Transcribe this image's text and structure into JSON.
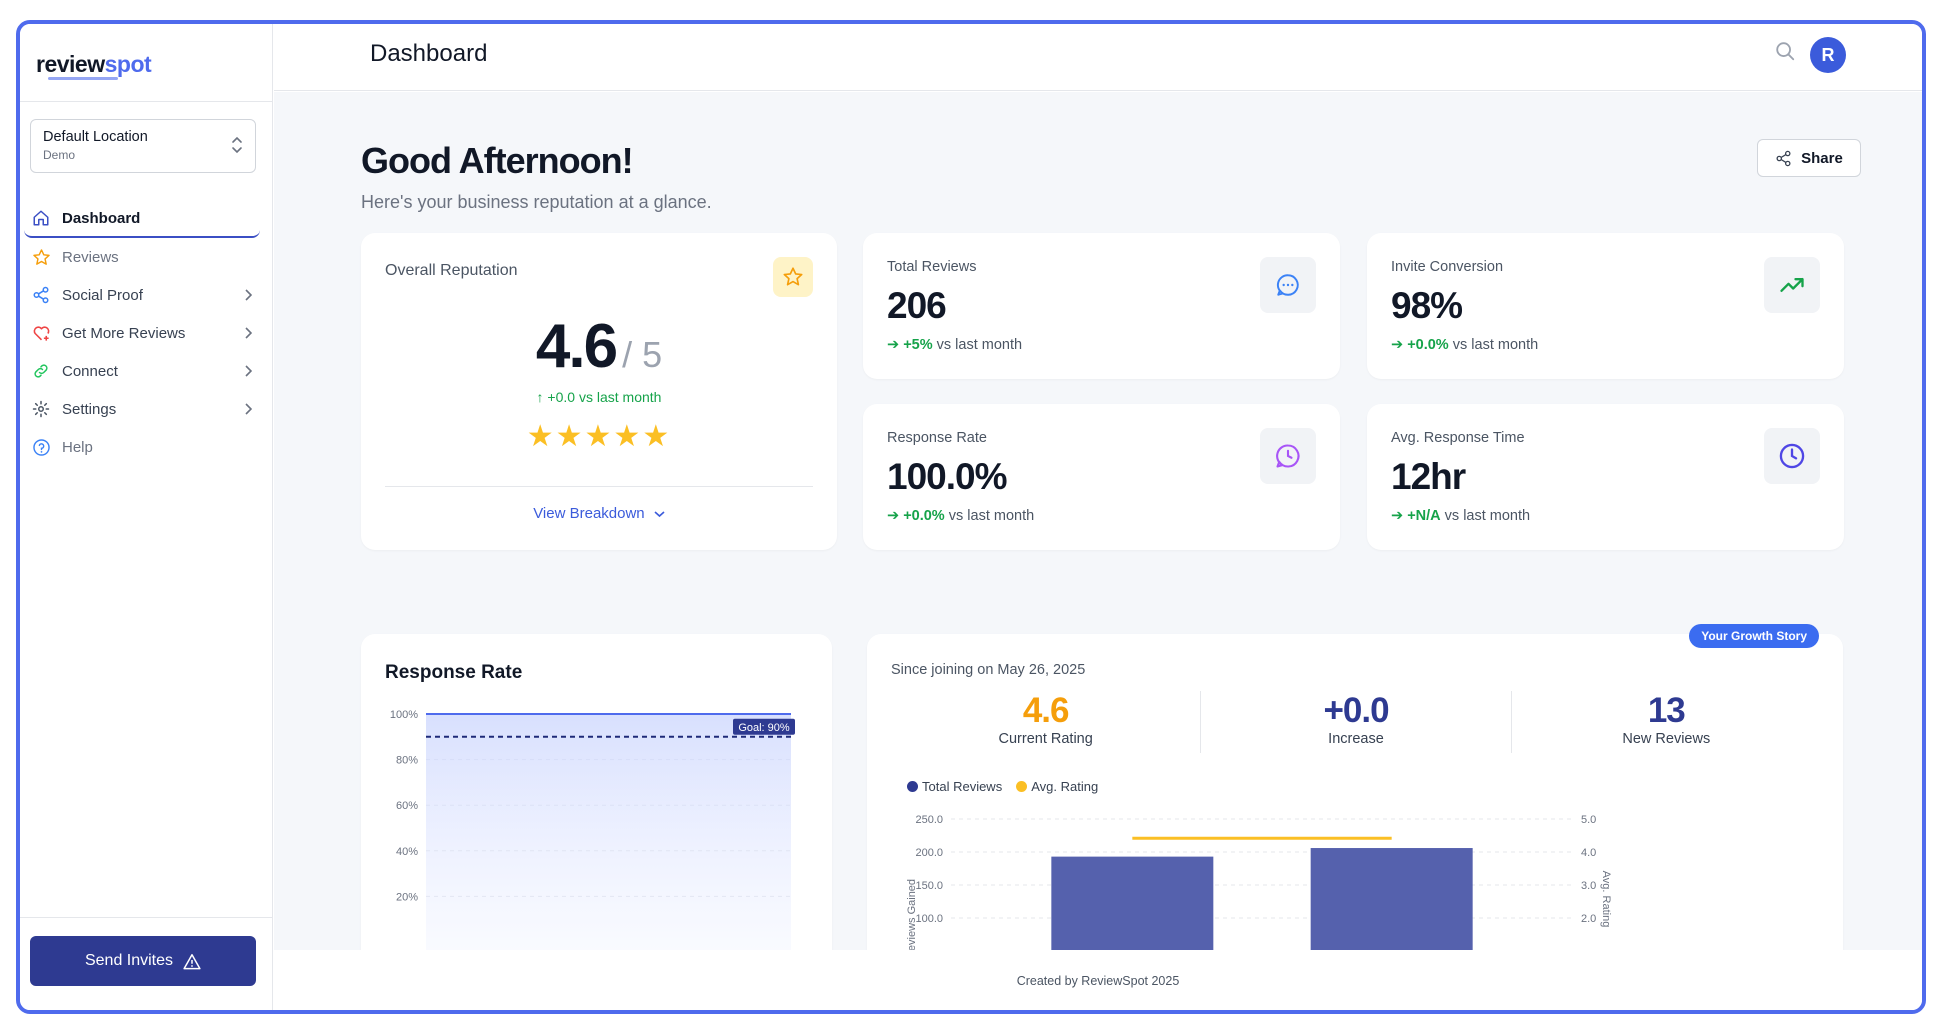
{
  "sidebar": {
    "logo_a": "review",
    "logo_b": "spot",
    "location": {
      "name": "Default Location",
      "sub": "Demo"
    },
    "items": [
      {
        "label": "Dashboard"
      },
      {
        "label": "Reviews"
      },
      {
        "label": "Social Proof"
      },
      {
        "label": "Get More Reviews"
      },
      {
        "label": "Connect"
      },
      {
        "label": "Settings"
      },
      {
        "label": "Help"
      }
    ],
    "send_label": "Send Invites"
  },
  "header": {
    "title": "Dashboard",
    "avatar": "R"
  },
  "main": {
    "greeting": "Good Afternoon!",
    "subtitle": "Here's your business reputation at a glance.",
    "share_label": "Share",
    "reputation": {
      "label": "Overall Reputation",
      "value": "4.6",
      "denom": "/ 5",
      "change": "↑ +0.0 vs last month",
      "stars": "★★★★★",
      "rating_fraction": 1.0,
      "breakdown_label": "View Breakdown"
    },
    "stats": [
      {
        "label": "Total Reviews",
        "value": "206",
        "delta": "+5%",
        "suffix": "vs last month"
      },
      {
        "label": "Invite Conversion",
        "value": "98%",
        "delta": "+0.0%",
        "suffix": "vs last month"
      },
      {
        "label": "Response Rate",
        "value": "100.0%",
        "delta": "+0.0%",
        "suffix": "vs last month"
      },
      {
        "label": "Avg. Response Time",
        "value": "12hr",
        "delta": "+N/A",
        "suffix": "vs last month"
      }
    ],
    "response_rate": {
      "title": "Response Rate",
      "goal_label": "Goal: 90%"
    },
    "growth": {
      "pill": "Your Growth Story",
      "since": "Since joining on May 26, 2025",
      "metrics": [
        {
          "value": "4.6",
          "label": "Current Rating",
          "color": "#f59e0b"
        },
        {
          "value": "+0.0",
          "label": "Increase",
          "color": "#2e3a91"
        },
        {
          "value": "13",
          "label": "New Reviews",
          "color": "#2e3a91"
        }
      ],
      "legend": [
        {
          "label": "Total Reviews",
          "color": "#2e3a91"
        },
        {
          "label": "Avg. Rating",
          "color": "#fbbf24"
        }
      ]
    }
  },
  "chart_data": [
    {
      "type": "area",
      "title": "Response Rate",
      "yticks": [
        "100%",
        "80%",
        "60%",
        "40%",
        "20%"
      ],
      "ylim": [
        0,
        100
      ],
      "values": [
        100,
        100
      ],
      "goal": 90
    },
    {
      "type": "bar",
      "ylabel": "Reviews Gained",
      "y2label": "Avg. Rating",
      "yticks": [
        "250.0",
        "200.0",
        "150.0",
        "100.0"
      ],
      "y2ticks": [
        "5.0",
        "4.0",
        "3.0",
        "2.0"
      ],
      "ylim": [
        0,
        250
      ],
      "y2lim": [
        0,
        5
      ],
      "series": [
        {
          "name": "Total Reviews",
          "values": [
            193,
            206
          ]
        },
        {
          "name": "Avg. Rating",
          "values": [
            4.6,
            4.6
          ]
        }
      ]
    }
  ],
  "footer": "Created by ReviewSpot 2025"
}
